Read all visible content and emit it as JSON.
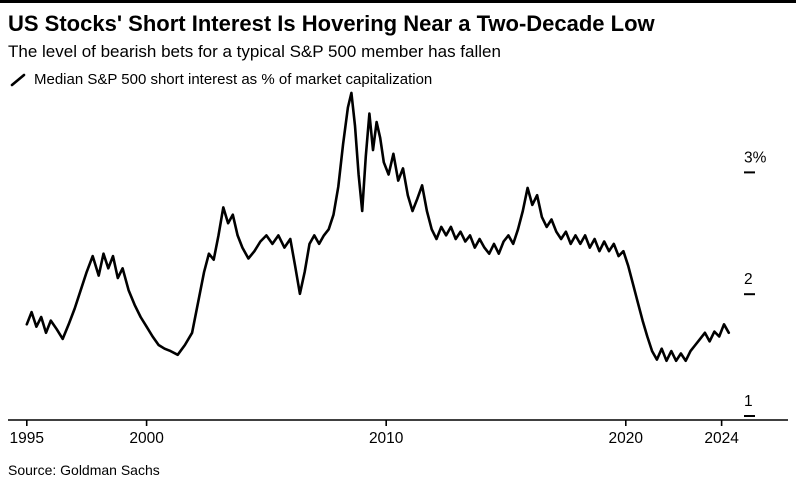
{
  "footer": {
    "source": "Source: Goldman Sachs"
  },
  "colors": {
    "line": "#000000",
    "background": "#ffffff",
    "axis": "#000000",
    "text": "#000000"
  },
  "chart_data": {
    "type": "line",
    "title": "US Stocks' Short Interest Is Hovering Near a Two-Decade Low",
    "subtitle": "The level of bearish bets for a typical S&P 500 member has fallen",
    "xlabel": "",
    "ylabel": "",
    "grid": false,
    "legend_position": "top-left",
    "xlim": [
      1994.8,
      2024.6
    ],
    "ylim": [
      1.0,
      3.66
    ],
    "xticks": [
      {
        "value": 1995,
        "label": "1995"
      },
      {
        "value": 2000,
        "label": "2000"
      },
      {
        "value": 2010,
        "label": "2010"
      },
      {
        "value": 2020,
        "label": "2020"
      },
      {
        "value": 2024,
        "label": "2024"
      }
    ],
    "yticks": [
      {
        "value": 3,
        "label": "3%"
      },
      {
        "value": 2,
        "label": "2"
      },
      {
        "value": 1,
        "label": "1"
      }
    ],
    "series": [
      {
        "name": "Median S&P 500 short interest as % of market capitalization",
        "points": [
          [
            1995.0,
            1.72
          ],
          [
            1995.2,
            1.82
          ],
          [
            1995.4,
            1.7
          ],
          [
            1995.6,
            1.78
          ],
          [
            1995.8,
            1.65
          ],
          [
            1996.0,
            1.75
          ],
          [
            1996.25,
            1.68
          ],
          [
            1996.5,
            1.6
          ],
          [
            1996.75,
            1.72
          ],
          [
            1997.0,
            1.85
          ],
          [
            1997.25,
            2.0
          ],
          [
            1997.5,
            2.15
          ],
          [
            1997.75,
            2.28
          ],
          [
            1998.0,
            2.12
          ],
          [
            1998.2,
            2.3
          ],
          [
            1998.4,
            2.18
          ],
          [
            1998.6,
            2.28
          ],
          [
            1998.8,
            2.1
          ],
          [
            1999.0,
            2.18
          ],
          [
            1999.25,
            2.0
          ],
          [
            1999.5,
            1.88
          ],
          [
            1999.75,
            1.78
          ],
          [
            2000.0,
            1.7
          ],
          [
            2000.25,
            1.62
          ],
          [
            2000.5,
            1.55
          ],
          [
            2000.75,
            1.52
          ],
          [
            2001.0,
            1.5
          ],
          [
            2001.3,
            1.47
          ],
          [
            2001.6,
            1.55
          ],
          [
            2001.9,
            1.65
          ],
          [
            2002.2,
            1.95
          ],
          [
            2002.4,
            2.15
          ],
          [
            2002.6,
            2.3
          ],
          [
            2002.8,
            2.25
          ],
          [
            2003.0,
            2.45
          ],
          [
            2003.2,
            2.68
          ],
          [
            2003.4,
            2.55
          ],
          [
            2003.6,
            2.62
          ],
          [
            2003.8,
            2.45
          ],
          [
            2004.0,
            2.35
          ],
          [
            2004.25,
            2.26
          ],
          [
            2004.5,
            2.32
          ],
          [
            2004.75,
            2.4
          ],
          [
            2005.0,
            2.45
          ],
          [
            2005.25,
            2.38
          ],
          [
            2005.5,
            2.45
          ],
          [
            2005.75,
            2.35
          ],
          [
            2006.0,
            2.42
          ],
          [
            2006.2,
            2.2
          ],
          [
            2006.4,
            1.97
          ],
          [
            2006.6,
            2.15
          ],
          [
            2006.8,
            2.38
          ],
          [
            2007.0,
            2.45
          ],
          [
            2007.2,
            2.38
          ],
          [
            2007.4,
            2.45
          ],
          [
            2007.6,
            2.5
          ],
          [
            2007.8,
            2.62
          ],
          [
            2008.0,
            2.85
          ],
          [
            2008.2,
            3.2
          ],
          [
            2008.4,
            3.5
          ],
          [
            2008.55,
            3.62
          ],
          [
            2008.7,
            3.35
          ],
          [
            2008.85,
            2.95
          ],
          [
            2009.0,
            2.65
          ],
          [
            2009.15,
            3.1
          ],
          [
            2009.3,
            3.45
          ],
          [
            2009.45,
            3.15
          ],
          [
            2009.6,
            3.38
          ],
          [
            2009.75,
            3.25
          ],
          [
            2009.9,
            3.05
          ],
          [
            2010.1,
            2.95
          ],
          [
            2010.3,
            3.12
          ],
          [
            2010.5,
            2.9
          ],
          [
            2010.7,
            3.0
          ],
          [
            2010.9,
            2.78
          ],
          [
            2011.1,
            2.65
          ],
          [
            2011.3,
            2.75
          ],
          [
            2011.5,
            2.86
          ],
          [
            2011.7,
            2.65
          ],
          [
            2011.9,
            2.5
          ],
          [
            2012.1,
            2.42
          ],
          [
            2012.3,
            2.52
          ],
          [
            2012.5,
            2.45
          ],
          [
            2012.7,
            2.52
          ],
          [
            2012.9,
            2.42
          ],
          [
            2013.1,
            2.48
          ],
          [
            2013.3,
            2.4
          ],
          [
            2013.5,
            2.45
          ],
          [
            2013.7,
            2.35
          ],
          [
            2013.9,
            2.42
          ],
          [
            2014.1,
            2.35
          ],
          [
            2014.3,
            2.3
          ],
          [
            2014.5,
            2.38
          ],
          [
            2014.7,
            2.3
          ],
          [
            2014.9,
            2.4
          ],
          [
            2015.1,
            2.45
          ],
          [
            2015.3,
            2.38
          ],
          [
            2015.5,
            2.5
          ],
          [
            2015.7,
            2.65
          ],
          [
            2015.9,
            2.84
          ],
          [
            2016.1,
            2.7
          ],
          [
            2016.3,
            2.78
          ],
          [
            2016.5,
            2.6
          ],
          [
            2016.7,
            2.52
          ],
          [
            2016.9,
            2.58
          ],
          [
            2017.1,
            2.48
          ],
          [
            2017.3,
            2.42
          ],
          [
            2017.5,
            2.48
          ],
          [
            2017.7,
            2.38
          ],
          [
            2017.9,
            2.45
          ],
          [
            2018.1,
            2.38
          ],
          [
            2018.3,
            2.45
          ],
          [
            2018.5,
            2.35
          ],
          [
            2018.7,
            2.42
          ],
          [
            2018.9,
            2.32
          ],
          [
            2019.1,
            2.4
          ],
          [
            2019.3,
            2.32
          ],
          [
            2019.5,
            2.38
          ],
          [
            2019.7,
            2.28
          ],
          [
            2019.9,
            2.32
          ],
          [
            2020.1,
            2.2
          ],
          [
            2020.3,
            2.05
          ],
          [
            2020.5,
            1.9
          ],
          [
            2020.7,
            1.75
          ],
          [
            2020.9,
            1.62
          ],
          [
            2021.1,
            1.5
          ],
          [
            2021.3,
            1.43
          ],
          [
            2021.5,
            1.52
          ],
          [
            2021.7,
            1.42
          ],
          [
            2021.9,
            1.5
          ],
          [
            2022.1,
            1.42
          ],
          [
            2022.3,
            1.48
          ],
          [
            2022.5,
            1.42
          ],
          [
            2022.7,
            1.5
          ],
          [
            2022.9,
            1.55
          ],
          [
            2023.1,
            1.6
          ],
          [
            2023.3,
            1.65
          ],
          [
            2023.5,
            1.58
          ],
          [
            2023.7,
            1.66
          ],
          [
            2023.9,
            1.62
          ],
          [
            2024.1,
            1.72
          ],
          [
            2024.3,
            1.65
          ]
        ]
      }
    ]
  }
}
